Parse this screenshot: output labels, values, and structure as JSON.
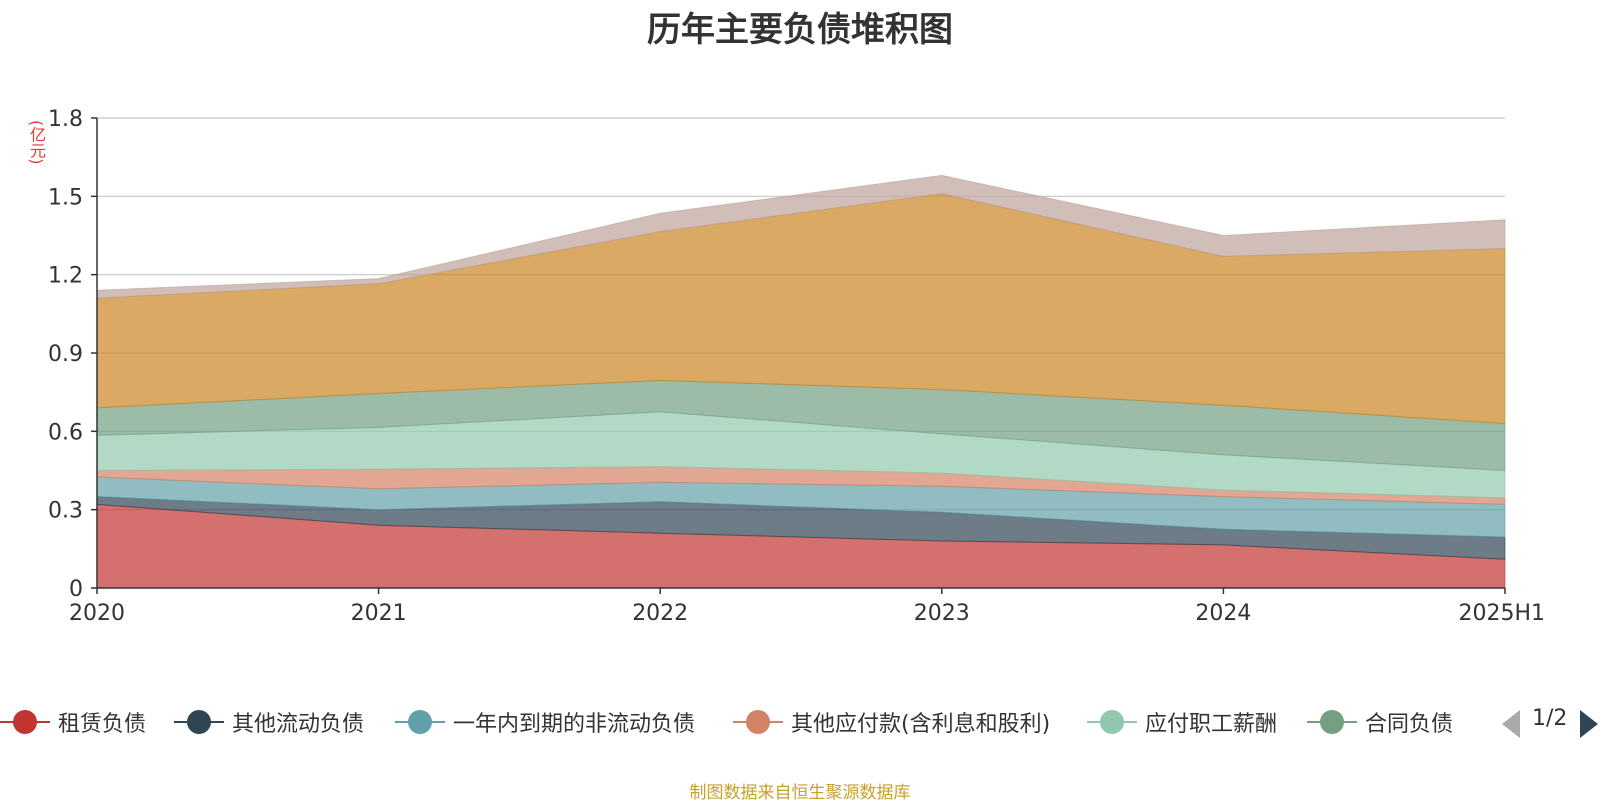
{
  "title": "历年主要负债堆积图",
  "unit_label": "(亿元)",
  "source_text": "制图数据来自恒生聚源数据库",
  "legend_page": "1/2",
  "chart_data": {
    "type": "area",
    "stacked": true,
    "title": "历年主要负债堆积图",
    "ylabel": "(亿元)",
    "ylim": [
      0,
      1.8
    ],
    "yticks": [
      0,
      0.3,
      0.6,
      0.9,
      1.2,
      1.5,
      1.8
    ],
    "ytick_labels": [
      "0",
      "0.3",
      "0.6",
      "0.9",
      "1.2",
      "1.5",
      "1.8"
    ],
    "x": [
      "2020",
      "2021",
      "2022",
      "2023",
      "2024",
      "2025H1"
    ],
    "grid": true,
    "legend_position": "bottom",
    "series": [
      {
        "name": "租赁负债",
        "color": "#c23531",
        "values": [
          0.32,
          0.24,
          0.21,
          0.18,
          0.165,
          0.11
        ]
      },
      {
        "name": "其他流动负债",
        "color": "#2f4554",
        "values": [
          0.03,
          0.06,
          0.12,
          0.11,
          0.06,
          0.085
        ]
      },
      {
        "name": "一年内到期的非流动负债",
        "color": "#61a0a8",
        "values": [
          0.075,
          0.08,
          0.075,
          0.1,
          0.125,
          0.125
        ]
      },
      {
        "name": "其他应付款(含利息和股利)",
        "color": "#d48265",
        "values": [
          0.025,
          0.075,
          0.06,
          0.05,
          0.025,
          0.025
        ]
      },
      {
        "name": "应付职工薪酬",
        "color": "#91c7ae",
        "values": [
          0.135,
          0.16,
          0.21,
          0.15,
          0.135,
          0.105
        ]
      },
      {
        "name": "合同负债",
        "color": "#749f83",
        "values": [
          0.105,
          0.13,
          0.12,
          0.17,
          0.19,
          0.18
        ]
      },
      {
        "name": "",
        "color": "#ca8622",
        "values": [
          0.42,
          0.42,
          0.57,
          0.75,
          0.57,
          0.67
        ]
      },
      {
        "name": "",
        "color": "#bda29a",
        "values": [
          0.03,
          0.02,
          0.07,
          0.07,
          0.08,
          0.11
        ]
      }
    ]
  }
}
